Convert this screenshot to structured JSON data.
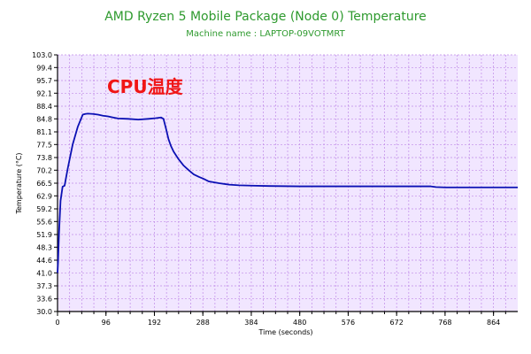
{
  "colors": {
    "title": "#2e9a2e",
    "plot_bg": "#f1e6ff",
    "grid": "#c08ae8",
    "line": "#0b10b4",
    "annotation": "#f01515"
  },
  "chart_data": {
    "type": "line",
    "title": "AMD Ryzen 5 Mobile Package (Node 0) Temperature",
    "subtitle": "Machine name : LAPTOP-09VOTMRT",
    "xlabel": "Time (seconds)",
    "ylabel": "Temperature (°C)",
    "annotation": "CPU温度",
    "xlim": [
      0,
      912
    ],
    "ylim": [
      30.0,
      103.0
    ],
    "x_ticks": [
      0,
      96,
      192,
      288,
      384,
      480,
      576,
      672,
      768,
      864
    ],
    "y_ticks": [
      30.0,
      33.6,
      37.3,
      41.0,
      44.6,
      48.3,
      51.9,
      55.6,
      59.2,
      62.9,
      66.5,
      70.2,
      73.8,
      77.5,
      81.1,
      84.8,
      88.4,
      92.1,
      95.7,
      99.4,
      103.0
    ],
    "grid": true,
    "series": [
      {
        "x": [
          0,
          1,
          3,
          6,
          10,
          14,
          20,
          25,
          30,
          40,
          50,
          55,
          60,
          70,
          80,
          90,
          100,
          110,
          120,
          140,
          160,
          180,
          195,
          205,
          210,
          215,
          220,
          225,
          230,
          240,
          250,
          260,
          270,
          280,
          290,
          300,
          320,
          340,
          360,
          384,
          420,
          480,
          576,
          672,
          740,
          750,
          768,
          864,
          912
        ],
        "y": [
          41.0,
          44.0,
          52.5,
          61.5,
          65.5,
          65.8,
          70.5,
          74.0,
          77.5,
          82.5,
          86.0,
          86.2,
          86.3,
          86.2,
          86.0,
          85.7,
          85.5,
          85.2,
          84.9,
          84.8,
          84.6,
          84.8,
          85.0,
          85.2,
          84.8,
          82.0,
          79.0,
          77.0,
          75.5,
          73.3,
          71.5,
          70.2,
          69.0,
          68.3,
          67.7,
          67.0,
          66.5,
          66.1,
          65.9,
          65.8,
          65.7,
          65.6,
          65.6,
          65.6,
          65.6,
          65.4,
          65.3,
          65.3,
          65.3
        ]
      }
    ]
  }
}
